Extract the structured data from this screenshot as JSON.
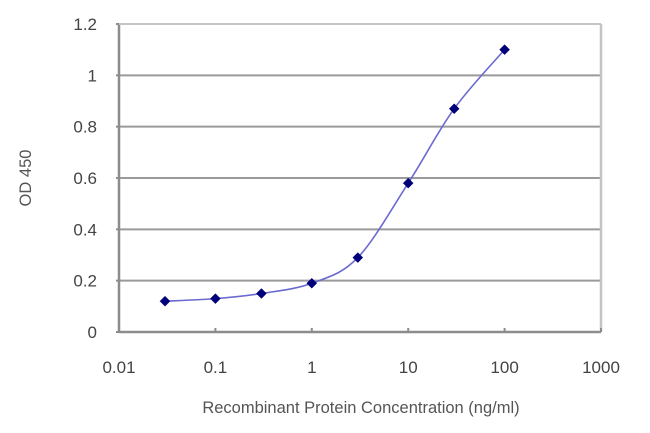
{
  "chart_data": {
    "type": "line",
    "title": "",
    "xlabel": "Recombinant Protein Concentration (ng/ml)",
    "ylabel": "OD 450",
    "xscale": "log",
    "xlim": [
      0.01,
      1000
    ],
    "ylim": [
      0,
      1.2
    ],
    "x_ticks": [
      0.01,
      0.1,
      1,
      10,
      100,
      1000
    ],
    "x_tick_labels": [
      "0.01",
      "0.1",
      "1",
      "10",
      "100",
      "1000"
    ],
    "y_ticks": [
      0,
      0.2,
      0.4,
      0.6,
      0.8,
      1,
      1.2
    ],
    "y_tick_labels": [
      "0",
      "0.2",
      "0.4",
      "0.6",
      "0.8",
      "1",
      "1.2"
    ],
    "grid": {
      "horizontal": true,
      "vertical": false
    },
    "legend": null,
    "series": [
      {
        "name": "OD 450",
        "marker": "diamond",
        "smooth": true,
        "x": [
          0.03,
          0.1,
          0.3,
          1,
          3,
          10,
          30,
          100
        ],
        "values": [
          0.12,
          0.13,
          0.15,
          0.19,
          0.29,
          0.58,
          0.87,
          1.1
        ]
      }
    ],
    "colors": {
      "marker": "#00007a",
      "line": "#6a6ad0",
      "grid": "#9a9a9a",
      "axis": "#8c8c8c",
      "text": "#444444"
    }
  }
}
